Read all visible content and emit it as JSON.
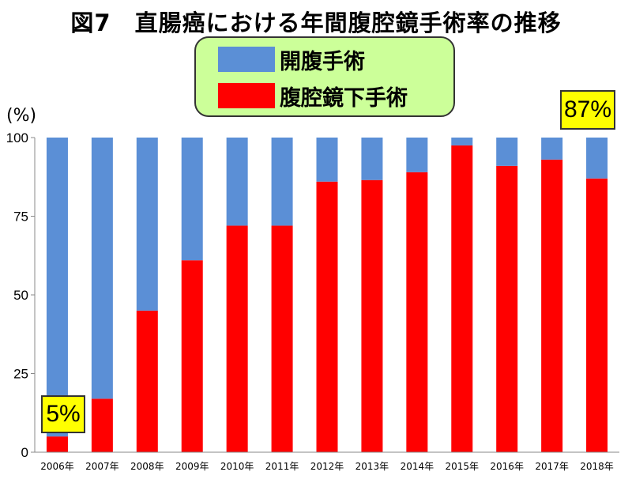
{
  "title": "図7　直腸癌における年間腹腔鏡手術率の推移",
  "legend": [
    {
      "label": "開腹手術",
      "color": "#5b8fd6"
    },
    {
      "label": "腹腔鏡下手術",
      "color": "#ff0000"
    }
  ],
  "callouts": {
    "end": "87%",
    "start": "5%"
  },
  "unit_label": "(%)",
  "chart_data": {
    "type": "bar",
    "stacked": true,
    "categories": [
      "2006年",
      "2007年",
      "2008年",
      "2009年",
      "2010年",
      "2011年",
      "2012年",
      "2013年",
      "2014年",
      "2015年",
      "2016年",
      "2017年",
      "2018年"
    ],
    "series": [
      {
        "name": "腹腔鏡下手術",
        "color": "#ff0000",
        "values": [
          5,
          17,
          45,
          61,
          72,
          72,
          86,
          86.5,
          89,
          97.5,
          91,
          93,
          87
        ]
      },
      {
        "name": "開腹手術",
        "color": "#5b8fd6",
        "values": [
          95,
          83,
          55,
          39,
          28,
          28,
          14,
          13.5,
          11,
          2.5,
          9,
          7,
          13
        ]
      }
    ],
    "ylabel": "(%)",
    "ylim": [
      0,
      100
    ],
    "yticks": [
      0,
      25,
      50,
      75,
      100
    ],
    "grid": false
  }
}
